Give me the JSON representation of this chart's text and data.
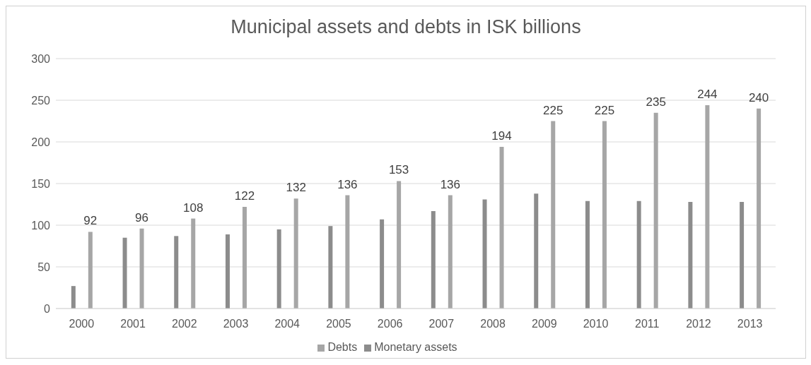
{
  "chart_data": {
    "type": "bar",
    "title": "Municipal assets and debts in ISK billions",
    "categories": [
      "2000",
      "2001",
      "2002",
      "2003",
      "2004",
      "2005",
      "2006",
      "2007",
      "2008",
      "2009",
      "2010",
      "2011",
      "2012",
      "2013"
    ],
    "series": [
      {
        "name": "Monetary assets",
        "color": "#8c8c8c",
        "values": [
          27,
          85,
          87,
          89,
          95,
          99,
          107,
          117,
          131,
          138,
          129,
          129,
          128,
          128
        ]
      },
      {
        "name": "Debts",
        "color": "#a6a6a6",
        "values": [
          92,
          96,
          108,
          122,
          132,
          136,
          153,
          136,
          194,
          225,
          225,
          235,
          244,
          240
        ],
        "value_labels": [
          "92",
          "96",
          "108",
          "122",
          "132",
          "136",
          "153",
          "136",
          "194",
          "225",
          "225",
          "235",
          "244",
          "240"
        ]
      }
    ],
    "ylim": [
      0,
      300
    ],
    "yticks": [
      0,
      50,
      100,
      150,
      200,
      250,
      300
    ],
    "grid": "y",
    "legend": "bottom"
  }
}
